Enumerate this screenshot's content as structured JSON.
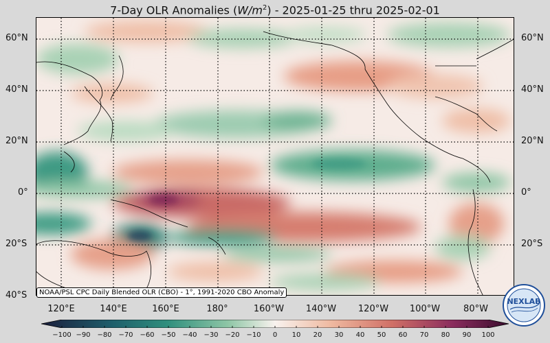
{
  "title": {
    "prefix": "7-Day OLR Anomalies (",
    "unit_main": "W/m",
    "unit_exp": "2",
    "suffix": ") - 2025-01-25 thru 2025-02-01"
  },
  "lat_labels": [
    "60°N",
    "40°N",
    "20°N",
    "0°",
    "20°S",
    "40°S"
  ],
  "lon_labels": [
    "120°E",
    "140°E",
    "160°E",
    "180°",
    "160°W",
    "140°W",
    "120°W",
    "100°W",
    "80°W"
  ],
  "credit": "NOAA/PSL CPC Daily Blended OLR (CBO) - 1°, 1991-2020 CBO Anomaly",
  "colorbar": {
    "ticks": [
      "−100",
      "−90",
      "−80",
      "−70",
      "−60",
      "−50",
      "−40",
      "−30",
      "−20",
      "−10",
      "0",
      "10",
      "20",
      "30",
      "40",
      "50",
      "60",
      "70",
      "80",
      "90",
      "100"
    ],
    "colors": {
      "neg_extreme": "#1b1e3c",
      "neg_strong": "#1e5e6b",
      "neg_mid": "#2f8f7d",
      "neg_weak": "#8fc6a6",
      "zero": "#f8f2ee",
      "pos_weak": "#efb9a0",
      "pos_mid": "#d07066",
      "pos_strong": "#8a2c5d",
      "pos_extreme": "#3a0d2e"
    }
  },
  "logo": {
    "text": "NEXLAB"
  }
}
